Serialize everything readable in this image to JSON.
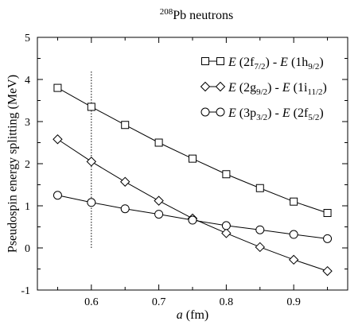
{
  "chart_data": {
    "type": "line",
    "title": {
      "sup": "208",
      "text": "Pb neutrons"
    },
    "xlabel": {
      "italic": "a",
      "rest": " (fm)"
    },
    "ylabel": "Pseudospin energy splitting (MeV)",
    "xlim": [
      0.52,
      0.98
    ],
    "ylim": [
      -1,
      5
    ],
    "xticks": [
      {
        "value": 0.6,
        "label": "0.6"
      },
      {
        "value": 0.7,
        "label": "0.7"
      },
      {
        "value": 0.8,
        "label": "0.8"
      },
      {
        "value": 0.9,
        "label": "0.9"
      }
    ],
    "yticks": [
      {
        "value": -1,
        "label": "-1"
      },
      {
        "value": 0,
        "label": "0"
      },
      {
        "value": 1,
        "label": "1"
      },
      {
        "value": 2,
        "label": "2"
      },
      {
        "value": 3,
        "label": "3"
      },
      {
        "value": 4,
        "label": "4"
      },
      {
        "value": 5,
        "label": "5"
      }
    ],
    "reference_line": {
      "x": 0.6,
      "y_from": 0,
      "y_to": 4.2,
      "style": "dotted"
    },
    "legend_position": "top-right",
    "series": [
      {
        "marker": "square",
        "name_parts": [
          [
            "E",
            " (2f"
          ],
          [
            "7/2"
          ],
          [
            ") - "
          ],
          [
            "E",
            " (1h"
          ],
          [
            "9/2"
          ],
          [
            ")"
          ]
        ],
        "x": [
          0.55,
          0.6,
          0.65,
          0.7,
          0.75,
          0.8,
          0.85,
          0.9,
          0.95
        ],
        "y": [
          3.8,
          3.35,
          2.92,
          2.5,
          2.12,
          1.75,
          1.42,
          1.1,
          0.83
        ]
      },
      {
        "marker": "diamond",
        "name_parts": [
          [
            "E",
            " (2g"
          ],
          [
            "9/2"
          ],
          [
            ") - "
          ],
          [
            "E",
            " (1i"
          ],
          [
            "11/2"
          ],
          [
            ")"
          ]
        ],
        "x": [
          0.55,
          0.6,
          0.65,
          0.7,
          0.75,
          0.8,
          0.85,
          0.9,
          0.95
        ],
        "y": [
          2.58,
          2.05,
          1.57,
          1.12,
          0.7,
          0.35,
          0.02,
          -0.28,
          -0.55
        ]
      },
      {
        "marker": "circle",
        "name_parts": [
          [
            "E",
            " (3p"
          ],
          [
            "3/2"
          ],
          [
            ") - "
          ],
          [
            "E",
            " (2f"
          ],
          [
            "5/2"
          ],
          [
            ")"
          ]
        ],
        "x": [
          0.55,
          0.6,
          0.65,
          0.7,
          0.75,
          0.8,
          0.85,
          0.9,
          0.95
        ],
        "y": [
          1.25,
          1.08,
          0.93,
          0.8,
          0.66,
          0.53,
          0.43,
          0.32,
          0.22
        ]
      }
    ]
  }
}
